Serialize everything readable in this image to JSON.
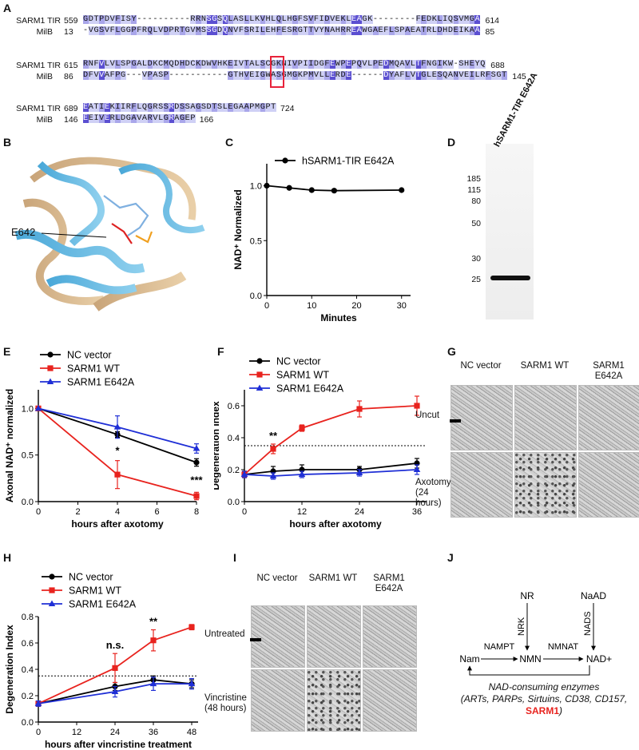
{
  "panel_labels": {
    "A": "A",
    "B": "B",
    "C": "C",
    "D": "D",
    "E": "E",
    "F": "F",
    "G": "G",
    "H": "H",
    "I": "I",
    "J": "J"
  },
  "alignment": {
    "blocks": [
      {
        "rows": [
          {
            "name": "SARM1 TIR",
            "start": "559",
            "seq": "GDTPDVFISY----------RRNSGSQLASLLKVHLQLHGFSVFIDVEKLEAGK--------FEDKLIQSVMGA",
            "end": "614"
          },
          {
            "name": "MilB",
            "start": "13",
            "seq": "-VGSVFLGGPFRQLVDPRTGVMSSGDQNVFSRILEHFESRGTTVYNAHRREAWGAEFLSPAEATRLDHDEIKAA",
            "end": "85"
          }
        ]
      },
      {
        "rows": [
          {
            "name": "SARM1 TIR",
            "start": "615",
            "seq": "RNFVLVLSPGALDKCMQDHDCKDWVHKEIVTALSCGKNIVPIIDGFEWPEPQVLPEDMQAVLTFNGIKW-SHEYQ",
            "end": "688"
          },
          {
            "name": "MilB",
            "start": "86",
            "seq": "DFVVAFPG---VPASP-----------GTHVEIGWASGMGKPMVLLERDE------DYAFLVTGLESQANVEILRFSGT",
            "end": "145"
          }
        ]
      },
      {
        "rows": [
          {
            "name": "SARM1 TIR",
            "start": "689",
            "seq": "EATIEKIIRFLQGRSSRDSSAGSDTSLEGAAPMGPT",
            "end": "724"
          },
          {
            "name": "MilB",
            "start": "146",
            "seq": "EEIVERLDGAVARVLGRAGEP",
            "end": "166"
          }
        ]
      }
    ]
  },
  "panelB": {
    "label": "E642"
  },
  "panelC": {
    "chart_data": {
      "type": "line",
      "series": [
        {
          "name": "hSARM1-TIR E642A",
          "x": [
            0,
            5,
            10,
            15,
            30
          ],
          "y": [
            1.0,
            0.98,
            0.96,
            0.955,
            0.96
          ]
        }
      ],
      "xlabel": "Minutes",
      "ylabel": "NAD⁺ Normalized",
      "xlim": [
        0,
        32
      ],
      "ylim": [
        0,
        1.2
      ],
      "xticks": [
        "0",
        "10",
        "20",
        "30"
      ],
      "yticks": [
        "0.0",
        "0.5",
        "1.0"
      ],
      "colors": [
        "#000000"
      ]
    }
  },
  "panelD": {
    "lane_label": "hSARM1-TIR E642A",
    "markers": [
      "185",
      "115",
      "80",
      "50",
      "30",
      "25"
    ]
  },
  "panelE": {
    "chart_data": {
      "type": "line",
      "x": [
        0,
        4,
        8
      ],
      "series": [
        {
          "name": "NC vector",
          "y": [
            1.0,
            0.72,
            0.42
          ],
          "err": [
            0,
            0.03,
            0.04
          ],
          "color": "#000000",
          "marker": "circle"
        },
        {
          "name": "SARM1 WT",
          "y": [
            1.0,
            0.29,
            0.06
          ],
          "err": [
            0,
            0.15,
            0.04
          ],
          "color": "#e8231e",
          "marker": "square"
        },
        {
          "name": "SARM1 E642A",
          "y": [
            1.0,
            0.8,
            0.57
          ],
          "err": [
            0,
            0.12,
            0.05
          ],
          "color": "#1f2fd6",
          "marker": "triangle"
        }
      ],
      "annotations": [
        {
          "x": 4,
          "text": "*"
        },
        {
          "x": 8,
          "text": "***"
        }
      ],
      "xlabel": "hours after axotomy",
      "ylabel": "Axonal NAD⁺ normalized",
      "xlim": [
        0,
        8
      ],
      "ylim": [
        0,
        1.2
      ],
      "xticks": [
        "0",
        "2",
        "4",
        "6",
        "8"
      ],
      "yticks": [
        "0.0",
        "0.5",
        "1.0"
      ]
    }
  },
  "panelF": {
    "chart_data": {
      "type": "line",
      "x": [
        0,
        6,
        12,
        24,
        36
      ],
      "series": [
        {
          "name": "NC vector",
          "y": [
            0.17,
            0.19,
            0.2,
            0.2,
            0.24
          ],
          "err": [
            0.02,
            0.03,
            0.03,
            0.02,
            0.03
          ],
          "color": "#000000",
          "marker": "circle"
        },
        {
          "name": "SARM1 WT",
          "y": [
            0.17,
            0.33,
            0.46,
            0.58,
            0.6
          ],
          "err": [
            0.02,
            0.03,
            0.02,
            0.05,
            0.06
          ],
          "color": "#e8231e",
          "marker": "square"
        },
        {
          "name": "SARM1 E642A",
          "y": [
            0.17,
            0.16,
            0.17,
            0.18,
            0.2
          ],
          "err": [
            0.02,
            0.02,
            0.02,
            0.02,
            0.03
          ],
          "color": "#1f2fd6",
          "marker": "triangle"
        }
      ],
      "threshold": 0.35,
      "annotations": [
        {
          "x": 6,
          "text": "**"
        }
      ],
      "xlabel": "hours after axotomy",
      "ylabel": "Degeneration Index",
      "xlim": [
        0,
        38
      ],
      "ylim": [
        0,
        0.7
      ],
      "xticks": [
        "0",
        "12",
        "24",
        "36"
      ],
      "yticks": [
        "0.0",
        "0.2",
        "0.4",
        "0.6"
      ]
    }
  },
  "panelG": {
    "columns": [
      "NC vector",
      "SARM1 WT",
      "SARM1 E642A"
    ],
    "rows": [
      "Uncut",
      "Axotomy (24 hours)"
    ]
  },
  "panelH": {
    "chart_data": {
      "type": "line",
      "x": [
        0,
        24,
        36,
        48
      ],
      "series": [
        {
          "name": "NC vector",
          "y": [
            0.14,
            0.27,
            0.32,
            0.29
          ],
          "err": [
            0.02,
            0.03,
            0.03,
            0.03
          ],
          "color": "#000000",
          "marker": "circle"
        },
        {
          "name": "SARM1 WT",
          "y": [
            0.14,
            0.41,
            0.62,
            0.72
          ],
          "err": [
            0.02,
            0.11,
            0.08,
            0.02
          ],
          "color": "#e8231e",
          "marker": "square"
        },
        {
          "name": "SARM1 E642A",
          "y": [
            0.14,
            0.23,
            0.29,
            0.29
          ],
          "err": [
            0.02,
            0.04,
            0.05,
            0.04
          ],
          "color": "#1f2fd6",
          "marker": "triangle"
        }
      ],
      "threshold": 0.35,
      "annotations": [
        {
          "x": 24,
          "text": "n.s."
        },
        {
          "x": 36,
          "text": "**"
        }
      ],
      "xlabel": "hours after vincristine treatment",
      "ylabel": "Degeneration Index",
      "xlim": [
        0,
        50
      ],
      "ylim": [
        0,
        0.8
      ],
      "xticks": [
        "0",
        "12",
        "24",
        "36",
        "48"
      ],
      "yticks": [
        "0.0",
        "0.2",
        "0.4",
        "0.6",
        "0.8"
      ]
    }
  },
  "panelI": {
    "columns": [
      "NC vector",
      "SARM1 WT",
      "SARM1 E642A"
    ],
    "rows": [
      "Untreated",
      "Vincristine (48 hours)"
    ]
  },
  "panelJ": {
    "nodes": {
      "nr": "NR",
      "naad": "NaAD",
      "nam": "Nam",
      "nmn": "NMN",
      "nad": "NAD+"
    },
    "enzymes": {
      "nampt": "NAMPT",
      "nrk": "NRK",
      "nmnat": "NMNAT",
      "nads": "NADS"
    },
    "consuming_title": "NAD-consuming enzymes",
    "consuming_list": "(ARTs, PARPs, Sirtuins, CD38, CD157,",
    "consuming_highlight": "SARM1",
    "consuming_close": ")",
    "highlight_color": "#e8231e"
  }
}
